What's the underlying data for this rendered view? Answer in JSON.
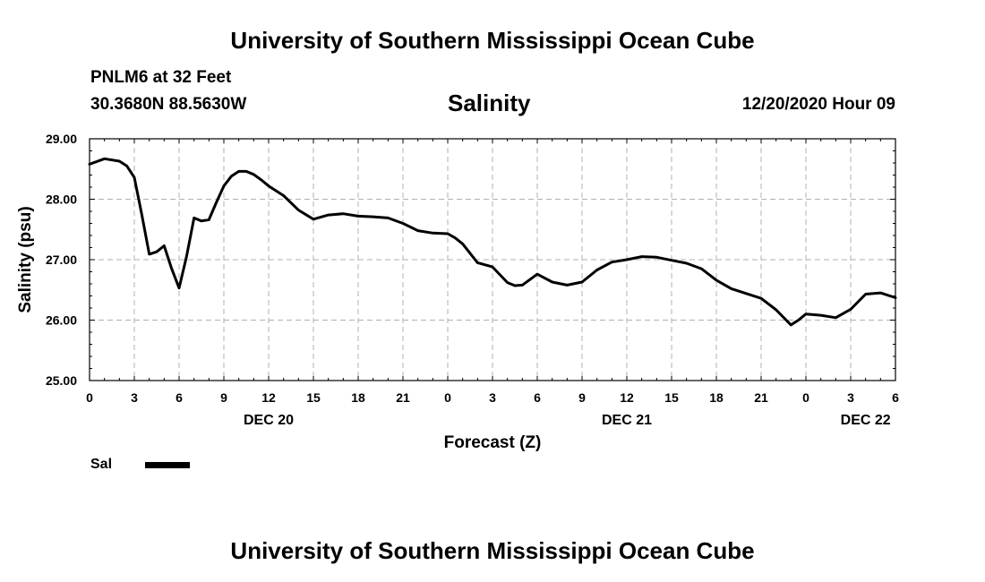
{
  "header": {
    "title": "University of Southern Mississippi Ocean Cube",
    "station": "PNLM6 at 32 Feet",
    "coords": "30.3680N 88.5630W",
    "parameter": "Salinity",
    "timestamp": "12/20/2020 Hour 09"
  },
  "footer": {
    "title": "University of Southern Mississippi Ocean Cube"
  },
  "legend": {
    "label": "Sal",
    "color": "#000000"
  },
  "chart_data": {
    "type": "line",
    "ylabel": "Salinity (psu)",
    "xlabel": "Forecast (Z)",
    "ylim": [
      25.0,
      29.0
    ],
    "yticks": [
      "25.00",
      "26.00",
      "27.00",
      "28.00",
      "29.00"
    ],
    "xlim": [
      0,
      54
    ],
    "xtick_labels": [
      "0",
      "3",
      "6",
      "9",
      "12",
      "15",
      "18",
      "21",
      "0",
      "3",
      "6",
      "9",
      "12",
      "15",
      "18",
      "21",
      "0",
      "3",
      "6"
    ],
    "day_labels": [
      {
        "label": "DEC 20",
        "hour": 12
      },
      {
        "label": "DEC 21",
        "hour": 36
      },
      {
        "label": "DEC 22",
        "hour": 52
      }
    ],
    "grid": true,
    "series": [
      {
        "name": "Sal",
        "color": "#000000",
        "x": [
          0,
          1,
          2,
          2.5,
          3,
          3.5,
          4,
          4.5,
          5,
          5.5,
          6,
          6.5,
          7,
          7.5,
          8,
          8.5,
          9,
          9.5,
          10,
          10.5,
          11,
          11.5,
          12,
          13,
          14,
          15,
          16,
          17,
          18,
          19,
          20,
          21,
          22,
          23,
          24,
          24.5,
          25,
          26,
          27,
          28,
          28.5,
          29,
          30,
          31,
          32,
          33,
          34,
          35,
          36,
          37,
          38,
          39,
          40,
          41,
          42,
          43,
          44,
          45,
          46,
          47,
          47.5,
          48,
          49,
          50,
          51,
          52,
          53,
          54
        ],
        "values": [
          28.58,
          28.67,
          28.63,
          28.55,
          28.36,
          27.75,
          27.09,
          27.13,
          27.23,
          26.85,
          26.53,
          27.05,
          27.69,
          27.64,
          27.66,
          27.95,
          28.22,
          28.38,
          28.46,
          28.46,
          28.41,
          28.32,
          28.22,
          28.06,
          27.82,
          27.67,
          27.74,
          27.76,
          27.72,
          27.71,
          27.69,
          27.6,
          27.48,
          27.44,
          27.43,
          27.36,
          27.26,
          26.95,
          26.88,
          26.62,
          26.57,
          26.58,
          26.76,
          26.63,
          26.58,
          26.63,
          26.83,
          26.96,
          27.0,
          27.05,
          27.04,
          26.99,
          26.94,
          26.85,
          26.66,
          26.52,
          26.44,
          26.36,
          26.17,
          25.92,
          26.0,
          26.1,
          26.08,
          26.04,
          26.18,
          26.43,
          26.45,
          26.37
        ]
      }
    ]
  }
}
